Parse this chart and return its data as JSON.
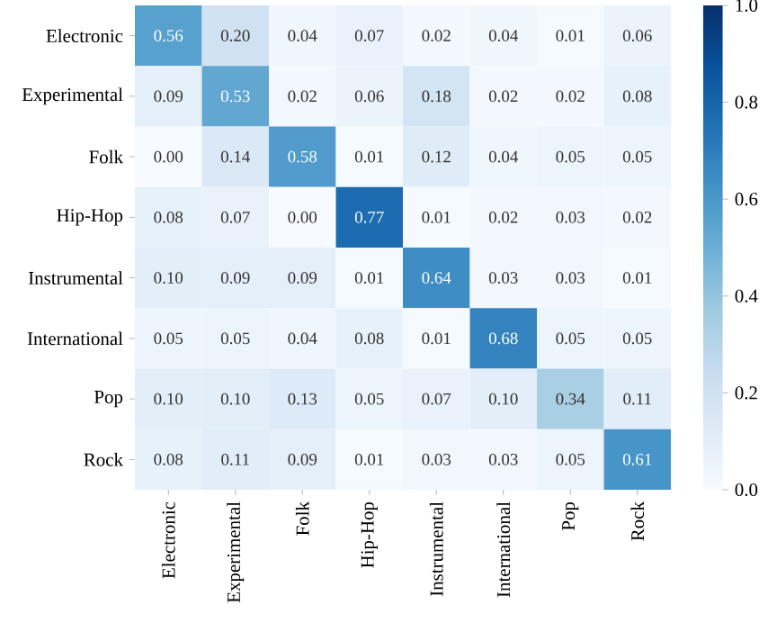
{
  "chart_data": {
    "type": "heatmap",
    "categories": [
      "Electronic",
      "Experimental",
      "Folk",
      "Hip-Hop",
      "Instrumental",
      "International",
      "Pop",
      "Rock"
    ],
    "y_categories": [
      "Electronic",
      "Experimental",
      "Folk",
      "Hip-Hop",
      "Instrumental",
      "International",
      "Pop",
      "Rock"
    ],
    "cells": [
      [
        0.56,
        0.2,
        0.04,
        0.07,
        0.02,
        0.04,
        0.01,
        0.06
      ],
      [
        0.09,
        0.53,
        0.02,
        0.06,
        0.18,
        0.02,
        0.02,
        0.08
      ],
      [
        0.0,
        0.14,
        0.58,
        0.01,
        0.12,
        0.04,
        0.05,
        0.05
      ],
      [
        0.08,
        0.07,
        0.0,
        0.77,
        0.01,
        0.02,
        0.03,
        0.02
      ],
      [
        0.1,
        0.09,
        0.09,
        0.01,
        0.64,
        0.03,
        0.03,
        0.01
      ],
      [
        0.05,
        0.05,
        0.04,
        0.08,
        0.01,
        0.68,
        0.05,
        0.05
      ],
      [
        0.1,
        0.1,
        0.13,
        0.05,
        0.07,
        0.1,
        0.34,
        0.11
      ],
      [
        0.08,
        0.11,
        0.09,
        0.01,
        0.03,
        0.03,
        0.05,
        0.61
      ]
    ],
    "cell_labels": [
      [
        "0.56",
        "0.20",
        "0.04",
        "0.07",
        "0.02",
        "0.04",
        "0.01",
        "0.06"
      ],
      [
        "0.09",
        "0.53",
        "0.02",
        "0.06",
        "0.18",
        "0.02",
        "0.02",
        "0.08"
      ],
      [
        "0.00",
        "0.14",
        "0.58",
        "0.01",
        "0.12",
        "0.04",
        "0.05",
        "0.05"
      ],
      [
        "0.08",
        "0.07",
        "0.00",
        "0.77",
        "0.01",
        "0.02",
        "0.03",
        "0.02"
      ],
      [
        "0.10",
        "0.09",
        "0.09",
        "0.01",
        "0.64",
        "0.03",
        "0.03",
        "0.01"
      ],
      [
        "0.05",
        "0.05",
        "0.04",
        "0.08",
        "0.01",
        "0.68",
        "0.05",
        "0.05"
      ],
      [
        "0.10",
        "0.10",
        "0.13",
        "0.05",
        "0.07",
        "0.10",
        "0.34",
        "0.11"
      ],
      [
        "0.08",
        "0.11",
        "0.09",
        "0.01",
        "0.03",
        "0.03",
        "0.05",
        "0.61"
      ]
    ],
    "data_labels": true,
    "clim": [
      0,
      1
    ],
    "cticks": [
      {
        "value": 0,
        "label": "0.0"
      },
      {
        "value": 0.2,
        "label": "0.2"
      },
      {
        "value": 0.4,
        "label": "0.4"
      },
      {
        "value": 0.6,
        "label": "0.6"
      },
      {
        "value": 0.8,
        "label": "0.8"
      },
      {
        "value": 1,
        "label": "1.0"
      }
    ]
  }
}
